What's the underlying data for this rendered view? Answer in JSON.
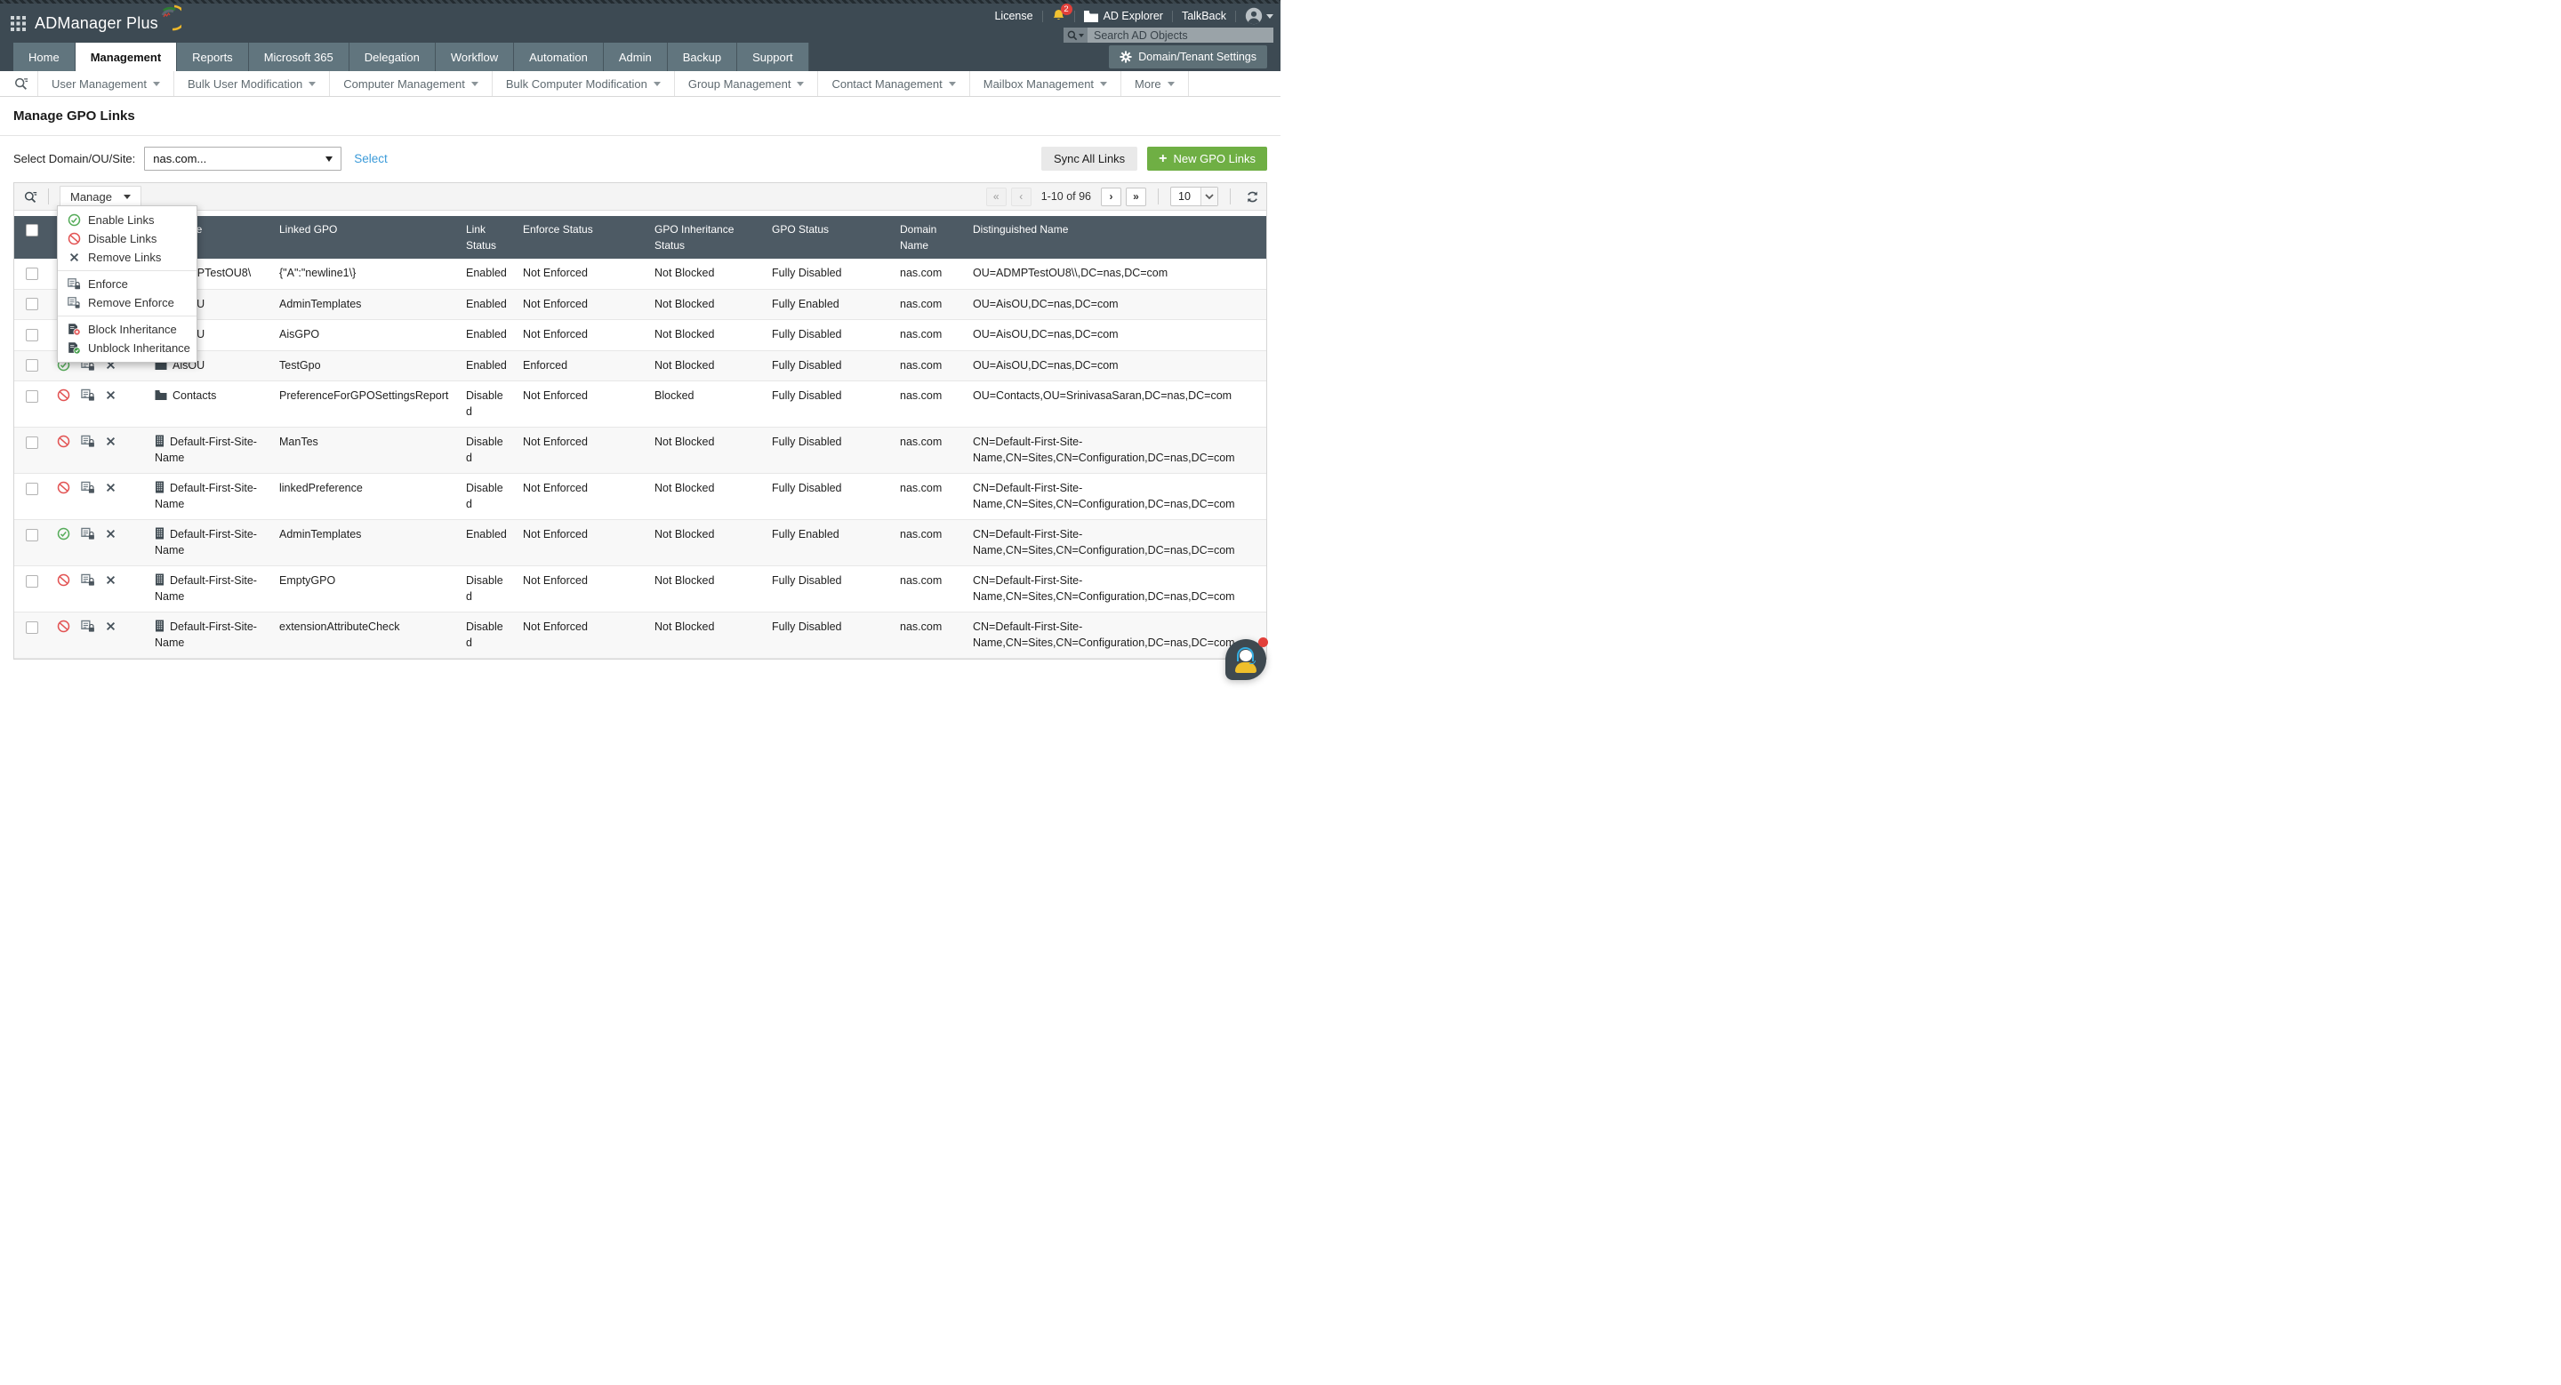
{
  "topbar": {
    "logo": "ADManager Plus",
    "license": "License",
    "notification_count": "2",
    "ad_explorer": "AD Explorer",
    "talkback": "TalkBack",
    "search_placeholder": "Search AD Objects"
  },
  "nav": {
    "tabs": [
      {
        "label": "Home",
        "active": false
      },
      {
        "label": "Management",
        "active": true
      },
      {
        "label": "Reports",
        "active": false
      },
      {
        "label": "Microsoft 365",
        "active": false
      },
      {
        "label": "Delegation",
        "active": false
      },
      {
        "label": "Workflow",
        "active": false
      },
      {
        "label": "Automation",
        "active": false
      },
      {
        "label": "Admin",
        "active": false
      },
      {
        "label": "Backup",
        "active": false
      },
      {
        "label": "Support",
        "active": false
      }
    ],
    "settings_button": "Domain/Tenant Settings"
  },
  "subnav": {
    "items": [
      "User Management",
      "Bulk User Modification",
      "Computer Management",
      "Bulk Computer Modification",
      "Group Management",
      "Contact Management",
      "Mailbox Management",
      "More"
    ]
  },
  "page": {
    "title": "Manage GPO Links",
    "domain_label": "Select Domain/OU/Site:",
    "domain_value": "nas.com...",
    "select_link": "Select",
    "sync_button": "Sync All Links",
    "new_button": "New GPO Links"
  },
  "toolbar": {
    "manage_label": "Manage",
    "pagination": {
      "range": "1-10 of 96",
      "page_size": "10"
    }
  },
  "menu": {
    "items": [
      {
        "label": "Enable Links",
        "icon": "circle-check"
      },
      {
        "label": "Disable Links",
        "icon": "circle-slash"
      },
      {
        "label": "Remove Links",
        "icon": "x-mark"
      },
      {
        "divider": true
      },
      {
        "label": "Enforce",
        "icon": "enforce"
      },
      {
        "label": "Remove Enforce",
        "icon": "remove-enforce"
      },
      {
        "divider": true
      },
      {
        "label": "Block Inheritance",
        "icon": "block-inherit"
      },
      {
        "label": "Unblock Inheritance",
        "icon": "unblock-inherit"
      }
    ]
  },
  "table": {
    "headers": [
      "",
      "",
      "OU Name",
      "Linked GPO",
      "Link Status",
      "Enforce Status",
      "GPO Inheritance Status",
      "GPO Status",
      "Domain Name",
      "Distinguished Name"
    ],
    "rows": [
      {
        "state": "enabled",
        "name_icon": "ou-folder",
        "name": "ADMPTestOU8\\",
        "linked_gpo": "{\"A\":\"newline1\\}",
        "link_status": "Enabled",
        "enforce_status": "Not Enforced",
        "inheritance_status": "Not Blocked",
        "gpo_status": "Fully Disabled",
        "domain": "nas.com",
        "dn": "OU=ADMPTestOU8\\\\,DC=nas,DC=com"
      },
      {
        "state": "enabled",
        "name_icon": "ou-folder",
        "name": "AisOU",
        "linked_gpo": "AdminTemplates",
        "link_status": "Enabled",
        "enforce_status": "Not Enforced",
        "inheritance_status": "Not Blocked",
        "gpo_status": "Fully Enabled",
        "domain": "nas.com",
        "dn": "OU=AisOU,DC=nas,DC=com"
      },
      {
        "state": "enabled",
        "name_icon": "ou-folder",
        "name": "AisOU",
        "linked_gpo": "AisGPO",
        "link_status": "Enabled",
        "enforce_status": "Not Enforced",
        "inheritance_status": "Not Blocked",
        "gpo_status": "Fully Disabled",
        "domain": "nas.com",
        "dn": "OU=AisOU,DC=nas,DC=com"
      },
      {
        "state": "enabled",
        "name_icon": "ou-folder",
        "name": "AisOU",
        "linked_gpo": "TestGpo",
        "link_status": "Enabled",
        "enforce_status": "Enforced",
        "inheritance_status": "Not Blocked",
        "gpo_status": "Fully Disabled",
        "domain": "nas.com",
        "dn": "OU=AisOU,DC=nas,DC=com"
      },
      {
        "state": "disabled",
        "name_icon": "ou-folder",
        "name": "Contacts",
        "linked_gpo": "PreferenceForGPOSettingsReport",
        "link_status": "Disabled",
        "enforce_status": "Not Enforced",
        "inheritance_status": "Blocked",
        "gpo_status": "Fully Disabled",
        "domain": "nas.com",
        "dn": "OU=Contacts,OU=SrinivasaSaran,DC=nas,DC=com"
      },
      {
        "state": "disabled",
        "name_icon": "building",
        "name": "Default-First-Site-Name",
        "linked_gpo": "ManTes",
        "link_status": "Disabled",
        "enforce_status": "Not Enforced",
        "inheritance_status": "Not Blocked",
        "gpo_status": "Fully Disabled",
        "domain": "nas.com",
        "dn": "CN=Default-First-Site-Name,CN=Sites,CN=Configuration,DC=nas,DC=com"
      },
      {
        "state": "disabled",
        "name_icon": "building",
        "name": "Default-First-Site-Name",
        "linked_gpo": "linkedPreference",
        "link_status": "Disabled",
        "enforce_status": "Not Enforced",
        "inheritance_status": "Not Blocked",
        "gpo_status": "Fully Disabled",
        "domain": "nas.com",
        "dn": "CN=Default-First-Site-Name,CN=Sites,CN=Configuration,DC=nas,DC=com"
      },
      {
        "state": "enabled",
        "name_icon": "building",
        "name": "Default-First-Site-Name",
        "linked_gpo": "AdminTemplates",
        "link_status": "Enabled",
        "enforce_status": "Not Enforced",
        "inheritance_status": "Not Blocked",
        "gpo_status": "Fully Enabled",
        "domain": "nas.com",
        "dn": "CN=Default-First-Site-Name,CN=Sites,CN=Configuration,DC=nas,DC=com"
      },
      {
        "state": "disabled",
        "name_icon": "building",
        "name": "Default-First-Site-Name",
        "linked_gpo": "EmptyGPO",
        "link_status": "Disabled",
        "enforce_status": "Not Enforced",
        "inheritance_status": "Not Blocked",
        "gpo_status": "Fully Disabled",
        "domain": "nas.com",
        "dn": "CN=Default-First-Site-Name,CN=Sites,CN=Configuration,DC=nas,DC=com"
      },
      {
        "state": "disabled",
        "name_icon": "building",
        "name": "Default-First-Site-Name",
        "linked_gpo": "extensionAttributeCheck",
        "link_status": "Disabled",
        "enforce_status": "Not Enforced",
        "inheritance_status": "Not Blocked",
        "gpo_status": "Fully Disabled",
        "domain": "nas.com",
        "dn": "CN=Default-First-Site-Name,CN=Sites,CN=Configuration,DC=nas,DC=com"
      }
    ]
  }
}
